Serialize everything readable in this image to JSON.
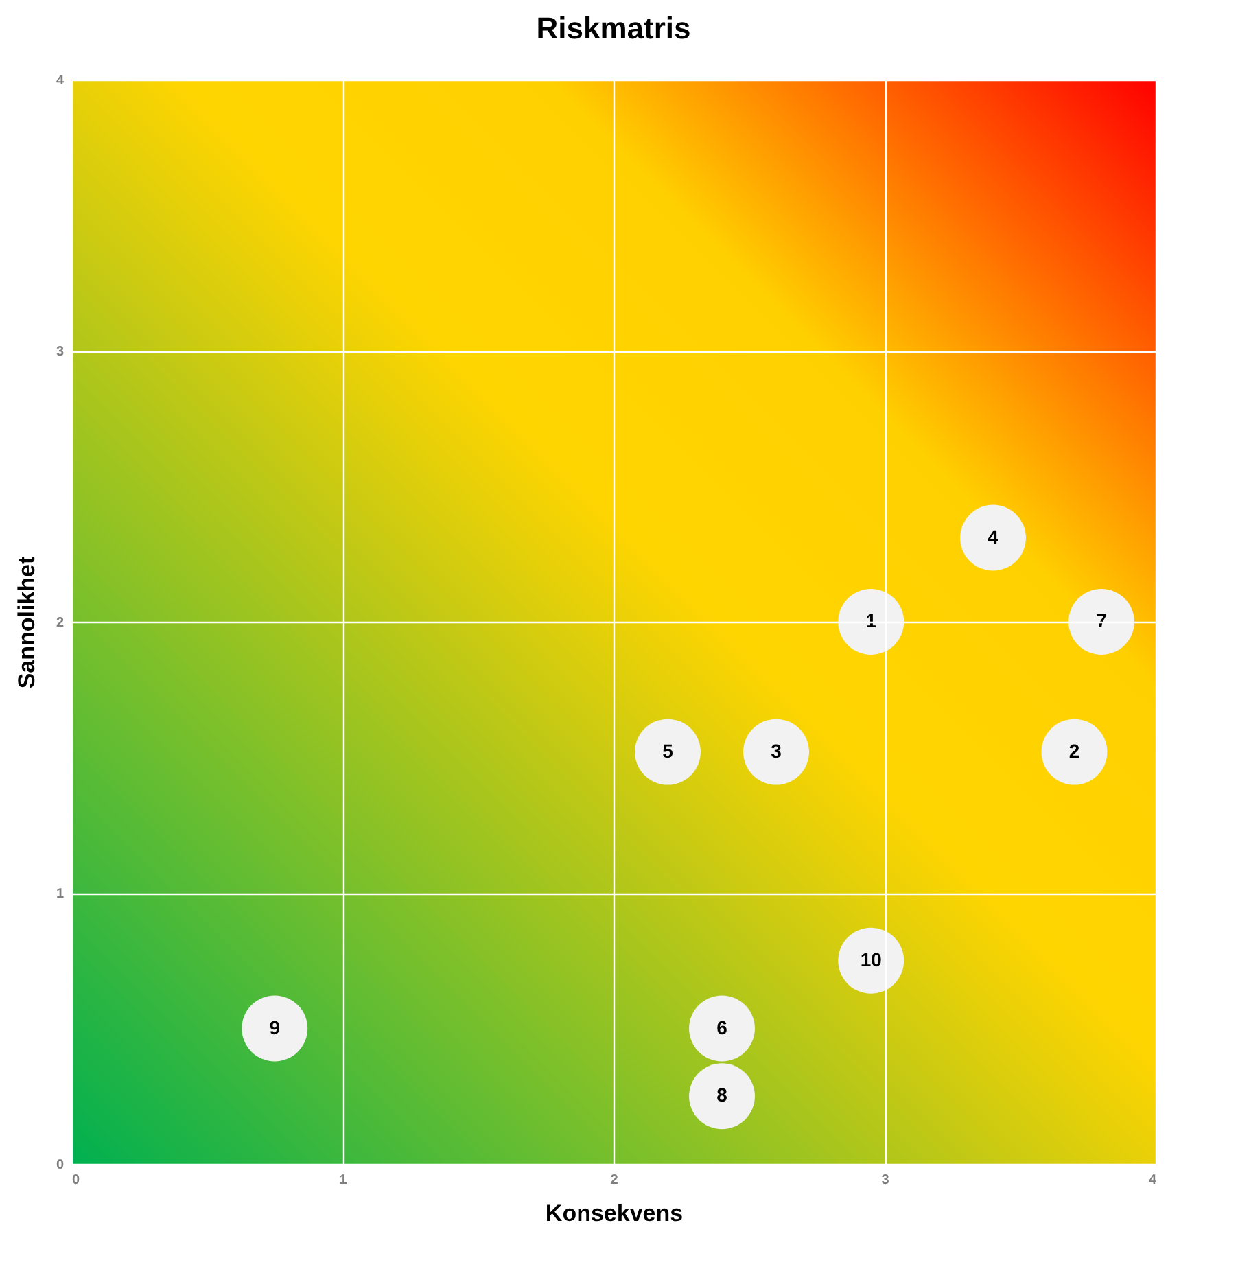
{
  "chart_data": {
    "type": "scatter",
    "title": "Riskmatris",
    "xlabel": "Konsekvens",
    "ylabel": "Sannolikhet",
    "x": [
      2.95,
      3.7,
      2.6,
      3.4,
      2.2,
      2.4,
      3.8,
      2.4,
      0.75,
      2.95
    ],
    "series": [
      {
        "color": "#f2f2f2",
        "values": [
          2.0,
          1.52,
          1.52,
          2.31,
          1.52,
          0.5,
          2.0,
          0.25,
          0.5,
          0.75
        ]
      }
    ],
    "annotations": [
      {
        "text": "1",
        "x": 2.95,
        "y": 2.0
      },
      {
        "text": "2",
        "x": 3.7,
        "y": 1.52
      },
      {
        "text": "3",
        "x": 2.6,
        "y": 1.52
      },
      {
        "text": "4",
        "x": 3.4,
        "y": 2.31
      },
      {
        "text": "5",
        "x": 2.2,
        "y": 1.52
      },
      {
        "text": "6",
        "x": 2.4,
        "y": 0.5
      },
      {
        "text": "7",
        "x": 3.8,
        "y": 2.0
      },
      {
        "text": "8",
        "x": 2.4,
        "y": 0.25
      },
      {
        "text": "9",
        "x": 0.75,
        "y": 0.5
      },
      {
        "text": "10",
        "x": 2.95,
        "y": 0.75
      }
    ],
    "xlim": [
      0,
      4
    ],
    "ylim": [
      0,
      4
    ],
    "xticks": [
      0,
      1,
      2,
      3,
      4
    ],
    "yticks": [
      0,
      1,
      2,
      3,
      4
    ],
    "grid": true,
    "marker": "circle",
    "legend": false
  }
}
